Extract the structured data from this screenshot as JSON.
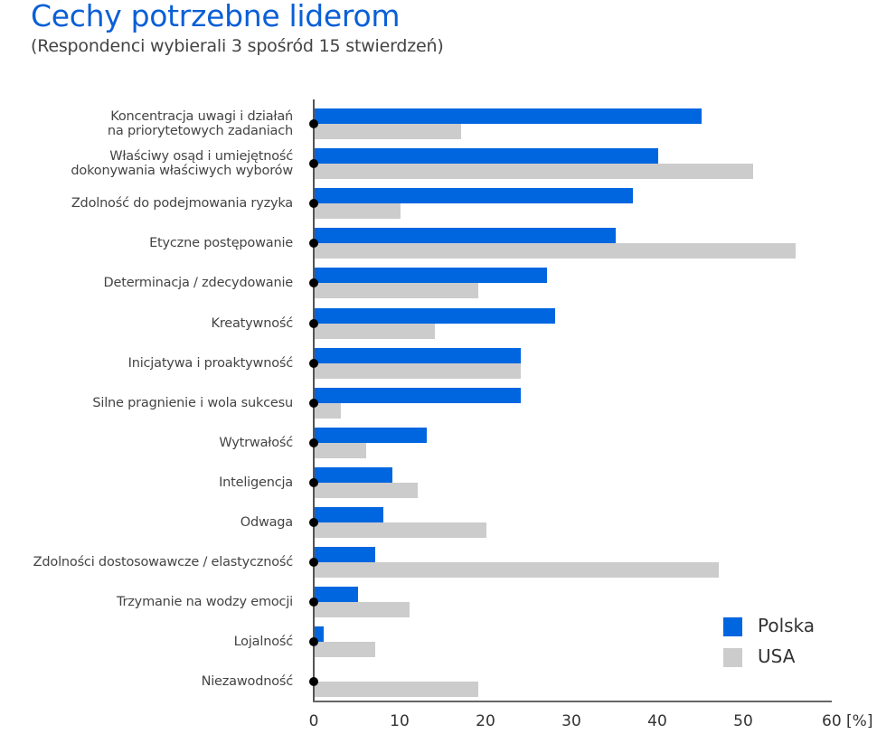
{
  "title": "Cechy potrzebne liderom",
  "subtitle": "(Respondenci wybierali 3 spośród 15 stwierdzeń)",
  "colors": {
    "polska": "#0066e0",
    "usa": "#cccccc",
    "title": "#0a5fd6"
  },
  "legend": [
    {
      "label": "Polska",
      "color": "#0066e0"
    },
    {
      "label": "USA",
      "color": "#cccccc"
    }
  ],
  "axis": {
    "ticks": [
      "0",
      "10",
      "20",
      "30",
      "40",
      "50",
      "60 [%]"
    ],
    "unit": "[%]"
  },
  "chart_data": {
    "type": "bar",
    "orientation": "horizontal",
    "title": "Cechy potrzebne liderom",
    "subtitle": "(Respondenci wybierali 3 spośród 15 stwierdzeń)",
    "xlabel": "[%]",
    "ylabel": "",
    "xlim": [
      0,
      60
    ],
    "xticks": [
      0,
      10,
      20,
      30,
      40,
      50,
      60
    ],
    "grid": false,
    "legend_position": "bottom-right",
    "categories": [
      "Koncentracja uwagi i działań na priorytetowych zadaniach",
      "Właściwy osąd i umiejętność dokonywania właściwych wyborów",
      "Zdolność do podejmowania ryzyka",
      "Etyczne postępowanie",
      "Determinacja / zdecydowanie",
      "Kreatywność",
      "Inicjatywa i proaktywność",
      "Silne pragnienie i wola sukcesu",
      "Wytrwałość",
      "Inteligencja",
      "Odwaga",
      "Zdolności dostosowawcze / elastyczność",
      "Trzymanie na wodzy emocji",
      "Lojalność",
      "Niezawodność"
    ],
    "series": [
      {
        "name": "Polska",
        "color": "#0066e0",
        "values": [
          45,
          40,
          37,
          35,
          27,
          28,
          24,
          24,
          13,
          9,
          8,
          7,
          5,
          1,
          0
        ]
      },
      {
        "name": "USA",
        "color": "#cccccc",
        "values": [
          17,
          51,
          10,
          56,
          19,
          14,
          24,
          3,
          6,
          12,
          20,
          47,
          11,
          7,
          19
        ]
      }
    ]
  },
  "rows": [
    {
      "line1": "Koncentracja uwagi i działań",
      "line2": "na priorytetowych zadaniach",
      "pl": 45,
      "us": 17
    },
    {
      "line1": "Właściwy osąd i umiejętność",
      "line2": "dokonywania właściwych wyborów",
      "pl": 40,
      "us": 51
    },
    {
      "line1": "Zdolność do podejmowania ryzyka",
      "line2": "",
      "pl": 37,
      "us": 10
    },
    {
      "line1": "Etyczne postępowanie",
      "line2": "",
      "pl": 35,
      "us": 56
    },
    {
      "line1": "Determinacja / zdecydowanie",
      "line2": "",
      "pl": 27,
      "us": 19
    },
    {
      "line1": "Kreatywność",
      "line2": "",
      "pl": 28,
      "us": 14
    },
    {
      "line1": "Inicjatywa i proaktywność",
      "line2": "",
      "pl": 24,
      "us": 24
    },
    {
      "line1": "Silne pragnienie i wola sukcesu",
      "line2": "",
      "pl": 24,
      "us": 3
    },
    {
      "line1": "Wytrwałość",
      "line2": "",
      "pl": 13,
      "us": 6
    },
    {
      "line1": "Inteligencja",
      "line2": "",
      "pl": 9,
      "us": 12
    },
    {
      "line1": "Odwaga",
      "line2": "",
      "pl": 8,
      "us": 20
    },
    {
      "line1": "Zdolności dostosowawcze / elastyczność",
      "line2": "",
      "pl": 7,
      "us": 47
    },
    {
      "line1": "Trzymanie na wodzy emocji",
      "line2": "",
      "pl": 5,
      "us": 11
    },
    {
      "line1": "Lojalność",
      "line2": "",
      "pl": 1,
      "us": 7
    },
    {
      "line1": "Niezawodność",
      "line2": "",
      "pl": 0,
      "us": 19
    }
  ]
}
